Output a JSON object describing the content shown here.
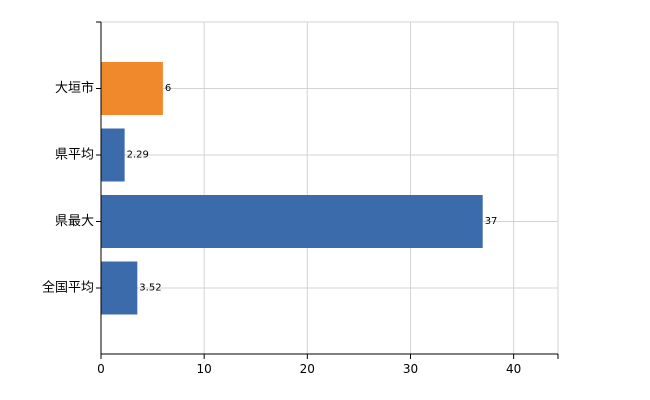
{
  "chart_data": {
    "type": "bar",
    "orientation": "horizontal",
    "categories": [
      "大垣市",
      "県平均",
      "県最大",
      "全国平均"
    ],
    "values": [
      6,
      2.29,
      37,
      3.52
    ],
    "value_labels": [
      "6",
      "2.29",
      "37",
      "3.52"
    ],
    "bar_colors": [
      "#F0892B",
      "#3B6BAA",
      "#3B6BAA",
      "#3B6BAA"
    ],
    "xlim": [
      0,
      44.3
    ],
    "xticks": [
      0,
      10,
      20,
      30,
      40
    ],
    "xtick_labels": [
      "0",
      "10",
      "20",
      "30",
      "40"
    ],
    "grid": true,
    "grid_color": "#D3D3D3",
    "title": "",
    "xlabel": "",
    "ylabel": ""
  }
}
